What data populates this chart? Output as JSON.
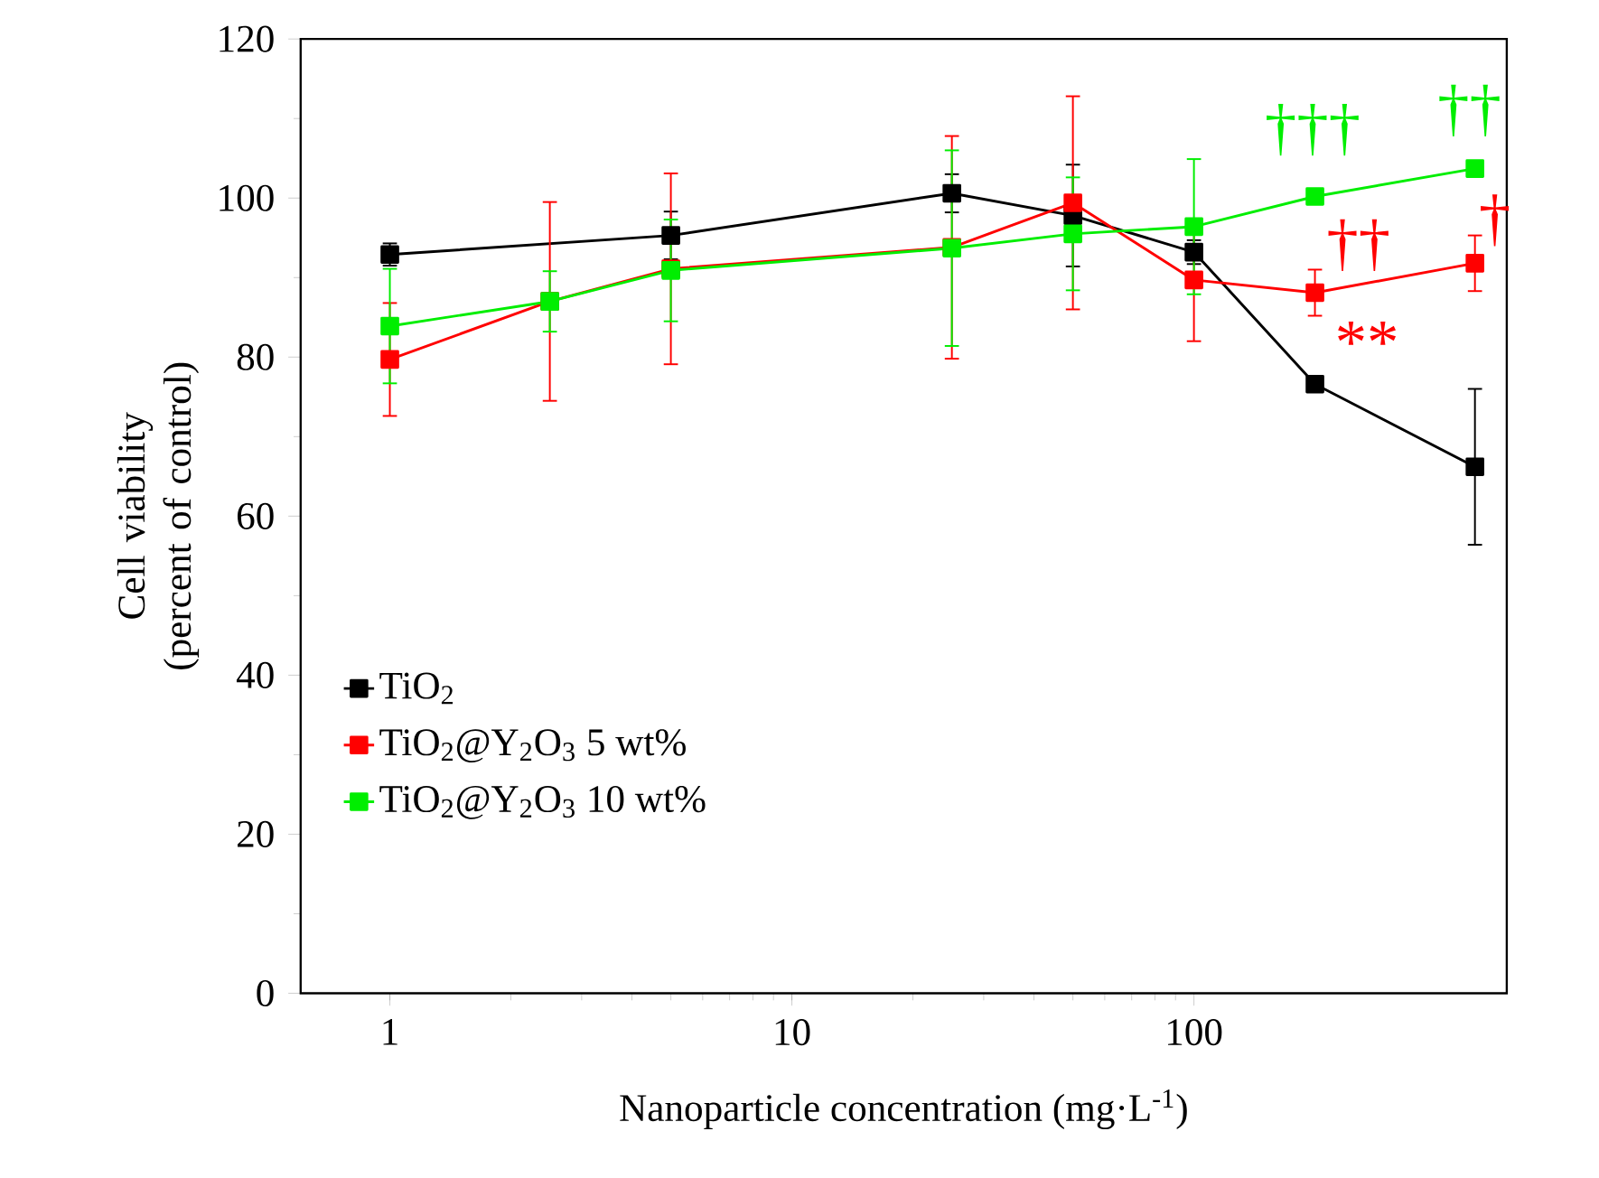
{
  "chart_data": {
    "type": "line",
    "xlabel": "Nanoparticle concentration (mg·L$^{-1}$)",
    "ylabel": "Cell viability (percent of control)",
    "log": "x",
    "xlim": [
      0.6,
      600
    ],
    "xticks": [
      1,
      10,
      100
    ],
    "ylim": [
      0,
      120
    ],
    "yticks": [
      0,
      20,
      40,
      60,
      80,
      100,
      120
    ],
    "grid": false,
    "legend": "left",
    "marker": "square",
    "line_style": "solid",
    "series": [
      {
        "name": "TiO$_{2}$",
        "color": "#000000",
        "x": [
          1,
          5,
          25,
          50,
          100,
          200,
          500
        ],
        "values": [
          92.9,
          95.3,
          100.6,
          97.8,
          93.2,
          76.6,
          66.2
        ],
        "errors": [
          1.4,
          3,
          2.4,
          6.4,
          1.5,
          null,
          9.8
        ]
      },
      {
        "name": "TiO$_{2}$@Y$_{2}$O$_{3}$ 5 wt%",
        "color": "#ff0000",
        "x": [
          1,
          2.5,
          5,
          25,
          50,
          100,
          200,
          500
        ],
        "values": [
          79.7,
          87.0,
          91.1,
          93.8,
          99.4,
          89.7,
          88.1,
          91.8
        ],
        "errors": [
          7.1,
          12.5,
          12,
          14,
          13.4,
          7.7,
          2.9,
          3.5
        ]
      },
      {
        "name": "TiO$_{2}$@Y$_{2}$O$_{3}$ 10 wt%",
        "color": "#00ee00",
        "x": [
          1,
          2.5,
          5,
          25,
          50,
          100,
          200,
          500
        ],
        "values": [
          83.9,
          87.0,
          90.9,
          93.7,
          95.5,
          96.4,
          100.2,
          103.7
        ],
        "errors": [
          7.2,
          3.8,
          6.4,
          12.3,
          7.1,
          8.5,
          null,
          null
        ]
      }
    ],
    "annotations": [
      "†††",
      "††",
      "**",
      "††",
      "†"
    ]
  }
}
